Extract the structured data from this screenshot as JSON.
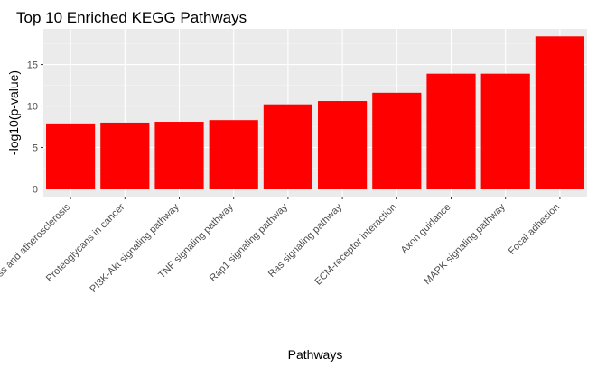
{
  "chart_data": {
    "type": "bar",
    "title": "Top 10 Enriched KEGG Pathways",
    "xlabel": "Pathways",
    "ylabel": "-log10(p-value)",
    "categories": [
      "Fluid shear stress and atherosclerosis",
      "Proteoglycans in cancer",
      "PI3K-Akt signaling pathway",
      "TNF signaling pathway",
      "Rap1 signaling pathway",
      "Ras signaling pathway",
      "ECM-receptor interaction",
      "Axon guidance",
      "MAPK signaling pathway",
      "Focal adhesion"
    ],
    "values": [
      7.9,
      8.0,
      8.1,
      8.3,
      10.2,
      10.6,
      11.6,
      13.9,
      13.9,
      18.4
    ],
    "ylim": [
      -0.92,
      19.3
    ],
    "yticks": [
      0,
      5,
      10,
      15
    ],
    "grid": true,
    "legend": "none",
    "colors": {
      "bar": "#FF0000",
      "panel": "#EBEBEB",
      "grid_major": "#FFFFFF",
      "tick_text": "#4D4D4D"
    }
  }
}
